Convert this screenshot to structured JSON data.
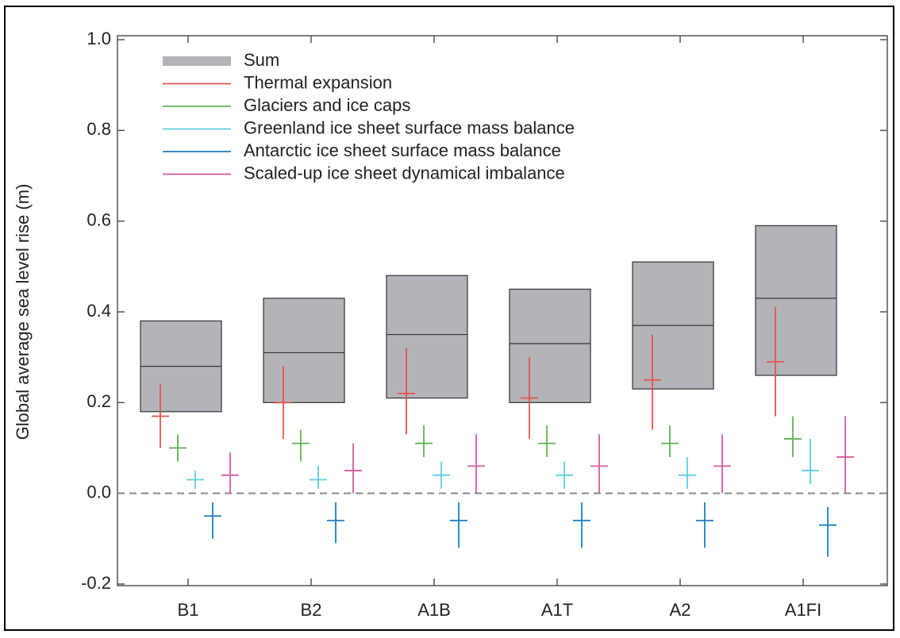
{
  "chart_data": {
    "type": "range",
    "y_label": "Global average sea level rise (m)",
    "categories": [
      "B1",
      "B2",
      "A1B",
      "A1T",
      "A2",
      "A1FI"
    ],
    "ylim": [
      -0.2,
      1.0
    ],
    "yticks": [
      -0.2,
      {
        "value": 0,
        "label": "0.0"
      },
      0.2,
      0.4,
      0.6,
      0.8,
      {
        "value": 1,
        "label": "1.0"
      }
    ],
    "series": [
      {
        "name": "Sum",
        "color": "#b2b4b9",
        "mark": "box",
        "values": [
          0.28,
          0.31,
          0.35,
          0.33,
          0.37,
          0.43
        ],
        "low": [
          0.18,
          0.2,
          0.21,
          0.2,
          0.23,
          0.26
        ],
        "high": [
          0.38,
          0.43,
          0.48,
          0.45,
          0.51,
          0.59
        ]
      },
      {
        "name": "Thermal expansion",
        "color": "#e8534a",
        "mark": "cross",
        "values": [
          0.17,
          0.2,
          0.22,
          0.21,
          0.25,
          0.29
        ],
        "low": [
          0.1,
          0.12,
          0.13,
          0.12,
          0.14,
          0.17
        ],
        "high": [
          0.24,
          0.28,
          0.32,
          0.3,
          0.35,
          0.41
        ]
      },
      {
        "name": "Glaciers and ice caps",
        "color": "#5db553",
        "mark": "cross",
        "values": [
          0.1,
          0.11,
          0.11,
          0.11,
          0.11,
          0.12
        ],
        "low": [
          0.07,
          0.07,
          0.08,
          0.08,
          0.08,
          0.08
        ],
        "high": [
          0.13,
          0.14,
          0.15,
          0.15,
          0.15,
          0.17
        ]
      },
      {
        "name": "Greenland ice sheet surface mass balance",
        "color": "#5fcfe0",
        "mark": "cross",
        "values": [
          0.03,
          0.03,
          0.04,
          0.04,
          0.04,
          0.05
        ],
        "low": [
          0.01,
          0.01,
          0.01,
          0.01,
          0.01,
          0.02
        ],
        "high": [
          0.05,
          0.06,
          0.07,
          0.07,
          0.08,
          0.12
        ]
      },
      {
        "name": "Antarctic ice sheet surface mass balance",
        "color": "#1c7fc2",
        "mark": "cross",
        "values": [
          -0.05,
          -0.06,
          -0.06,
          -0.06,
          -0.06,
          -0.07
        ],
        "low": [
          -0.1,
          -0.11,
          -0.12,
          -0.12,
          -0.12,
          -0.14
        ],
        "high": [
          -0.02,
          -0.02,
          -0.02,
          -0.02,
          -0.02,
          -0.03
        ]
      },
      {
        "name": "Scaled-up ice sheet dynamical imbalance",
        "color": "#d65b9f",
        "mark": "cross",
        "values": [
          0.04,
          0.05,
          0.06,
          0.06,
          0.06,
          0.08
        ],
        "low": [
          0,
          0,
          0,
          0,
          0,
          0
        ],
        "high": [
          0.09,
          0.11,
          0.13,
          0.13,
          0.13,
          0.17
        ]
      }
    ]
  }
}
